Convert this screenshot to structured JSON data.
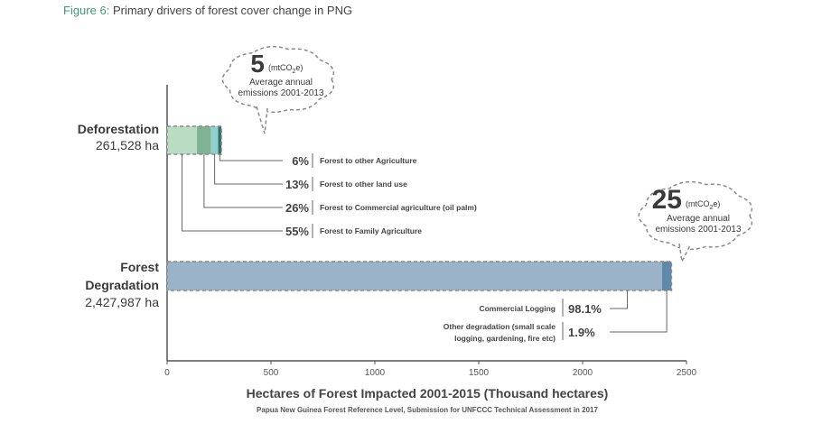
{
  "figure": {
    "label": "Figure 6:",
    "title": "Primary drivers of forest cover change in PNG"
  },
  "chart_data": {
    "type": "bar",
    "orientation": "horizontal",
    "stacked": true,
    "xlabel": "Hectares of Forest Impacted 2001-2015 (Thousand hectares)",
    "source": "Papua New Guinea Forest Reference Level, Submission for UNFCCC Technical Assessment in 2017",
    "xlim": [
      0,
      2500
    ],
    "xticks": [
      0,
      500,
      1000,
      1500,
      2000,
      2500
    ],
    "categories": [
      {
        "name_lines": [
          "Deforestation"
        ],
        "area": "261,528 ha",
        "total_thousand_ha": 261.528,
        "emissions": {
          "value": "5",
          "unit_prefix": "(mtCO",
          "unit_sub": "2",
          "unit_suffix": "e)",
          "line1": "Average annual",
          "line2": "emissions 2001-2013"
        },
        "segments": [
          {
            "label": "Forest to Family Agriculture",
            "pct_label": "55%",
            "share": 0.55,
            "color": "#b9dcc3"
          },
          {
            "label": "Forest to Commercial agriculture (oil palm)",
            "pct_label": "26%",
            "share": 0.26,
            "color": "#7fb393"
          },
          {
            "label": "Forest to other land use",
            "pct_label": "13%",
            "share": 0.13,
            "color": "#8fd0cf"
          },
          {
            "label": "Forest to other Agriculture",
            "pct_label": "6%",
            "share": 0.06,
            "color": "#2f6f63"
          }
        ]
      },
      {
        "name_lines": [
          "Forest",
          "Degradation"
        ],
        "area": "2,427,987 ha",
        "total_thousand_ha": 2427.987,
        "emissions": {
          "value": "25",
          "unit_prefix": "(mtCO",
          "unit_sub": "2",
          "unit_suffix": "e)",
          "line1": "Average annual",
          "line2": "emissions 2001-2013"
        },
        "segments": [
          {
            "label_lines": [
              "Commercial Logging"
            ],
            "pct_label": "98.1%",
            "share": 0.981,
            "color": "#9bb3c8"
          },
          {
            "label_lines": [
              "Other degradation (small scale",
              "logging, gardening, fire etc)"
            ],
            "pct_label": "1.9%",
            "share": 0.019,
            "color": "#5f89a8"
          }
        ]
      }
    ]
  }
}
